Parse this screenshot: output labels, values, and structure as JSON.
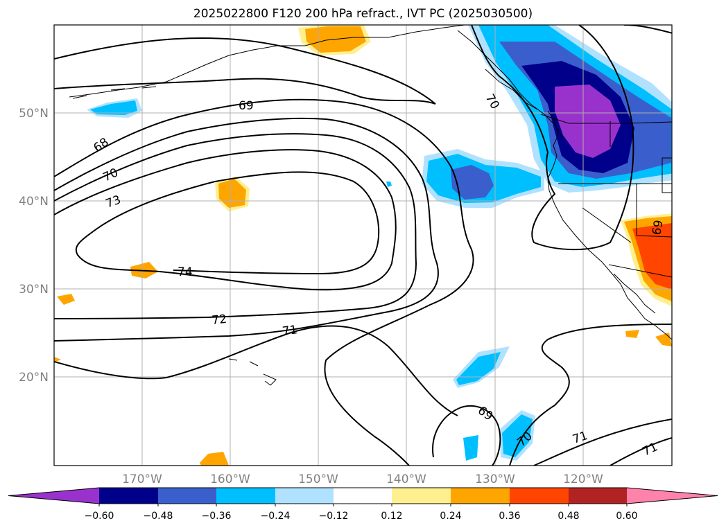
{
  "title": "2025022800 F120 200 hPa refract., IVT PC (2025030500)",
  "map": {
    "lon_labels": [
      "170°W",
      "160°W",
      "150°W",
      "140°W",
      "130°W",
      "120°W"
    ],
    "lat_labels": [
      "50°N",
      "40°N",
      "30°N",
      "20°N"
    ],
    "contour_labels": [
      "69",
      "68",
      "70",
      "73",
      "74",
      "72",
      "71",
      "70",
      "69",
      "70",
      "71",
      "71",
      "69"
    ],
    "grid_label_color": "#808080"
  },
  "colorbar": {
    "colors": [
      "#9932cc",
      "#00008b",
      "#3a5fcd",
      "#00bfff",
      "#b0e2ff",
      "#ffffff",
      "#fff08f",
      "#ffa500",
      "#ff4500",
      "#b22222",
      "#ff82ab"
    ],
    "tick_labels": [
      "−0.60",
      "−0.48",
      "−0.36",
      "−0.24",
      "−0.12",
      "0.12",
      "0.24",
      "0.36",
      "0.48",
      "0.60"
    ]
  }
}
